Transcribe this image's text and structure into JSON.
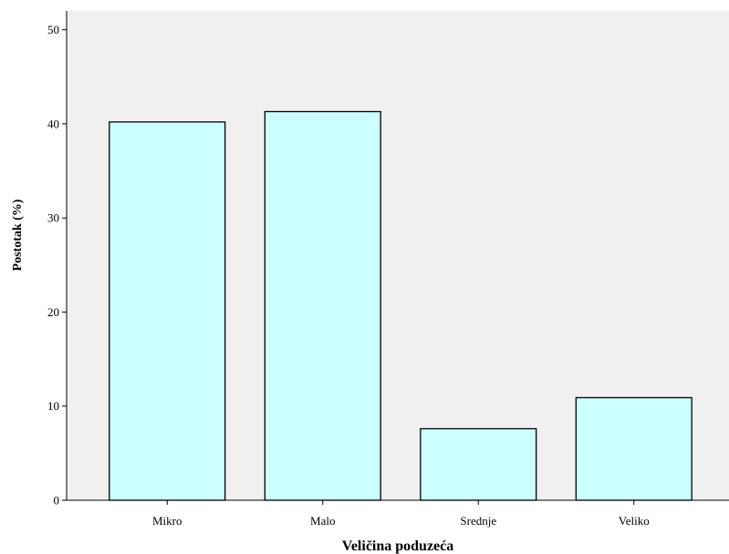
{
  "chart_data": {
    "type": "bar",
    "title": "",
    "xlabel": "Veličina poduzeća",
    "ylabel": "Postotak (%)",
    "categories": [
      "Mikro",
      "Malo",
      "Srednje",
      "Veliko"
    ],
    "values": [
      40.2,
      41.3,
      7.6,
      10.9
    ],
    "ylim": [
      0,
      52
    ],
    "yticks": [
      "0",
      "10",
      "20",
      "30",
      "40",
      "50"
    ],
    "grid": false,
    "legend": "none",
    "colors": {
      "plot_background": "#f0f0f0",
      "bar_fill": "#ccffff",
      "bar_stroke": "#000000",
      "axis": "#000000"
    }
  }
}
